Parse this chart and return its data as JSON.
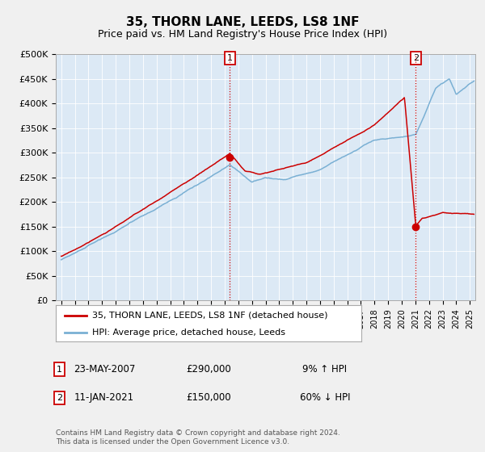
{
  "title": "35, THORN LANE, LEEDS, LS8 1NF",
  "subtitle": "Price paid vs. HM Land Registry's House Price Index (HPI)",
  "ylabel_ticks": [
    "£0",
    "£50K",
    "£100K",
    "£150K",
    "£200K",
    "£250K",
    "£300K",
    "£350K",
    "£400K",
    "£450K",
    "£500K"
  ],
  "ytick_values": [
    0,
    50000,
    100000,
    150000,
    200000,
    250000,
    300000,
    350000,
    400000,
    450000,
    500000
  ],
  "ylim": [
    0,
    500000
  ],
  "xlim_start": 1994.6,
  "xlim_end": 2025.4,
  "transaction1_date": "23-MAY-2007",
  "transaction1_price": 290000,
  "transaction1_label": "9% ↑ HPI",
  "transaction1_x": 2007.38,
  "transaction2_date": "11-JAN-2021",
  "transaction2_price": 150000,
  "transaction2_label": "60% ↓ HPI",
  "transaction2_x": 2021.03,
  "legend_line1": "35, THORN LANE, LEEDS, LS8 1NF (detached house)",
  "legend_line2": "HPI: Average price, detached house, Leeds",
  "footer": "Contains HM Land Registry data © Crown copyright and database right 2024.\nThis data is licensed under the Open Government Licence v3.0.",
  "line_red_color": "#cc0000",
  "line_blue_color": "#7ab0d4",
  "background_color": "#f0f0f0",
  "plot_bg_color": "#dce9f5",
  "grid_color": "#ffffff",
  "annotation_box_color": "#cc0000"
}
